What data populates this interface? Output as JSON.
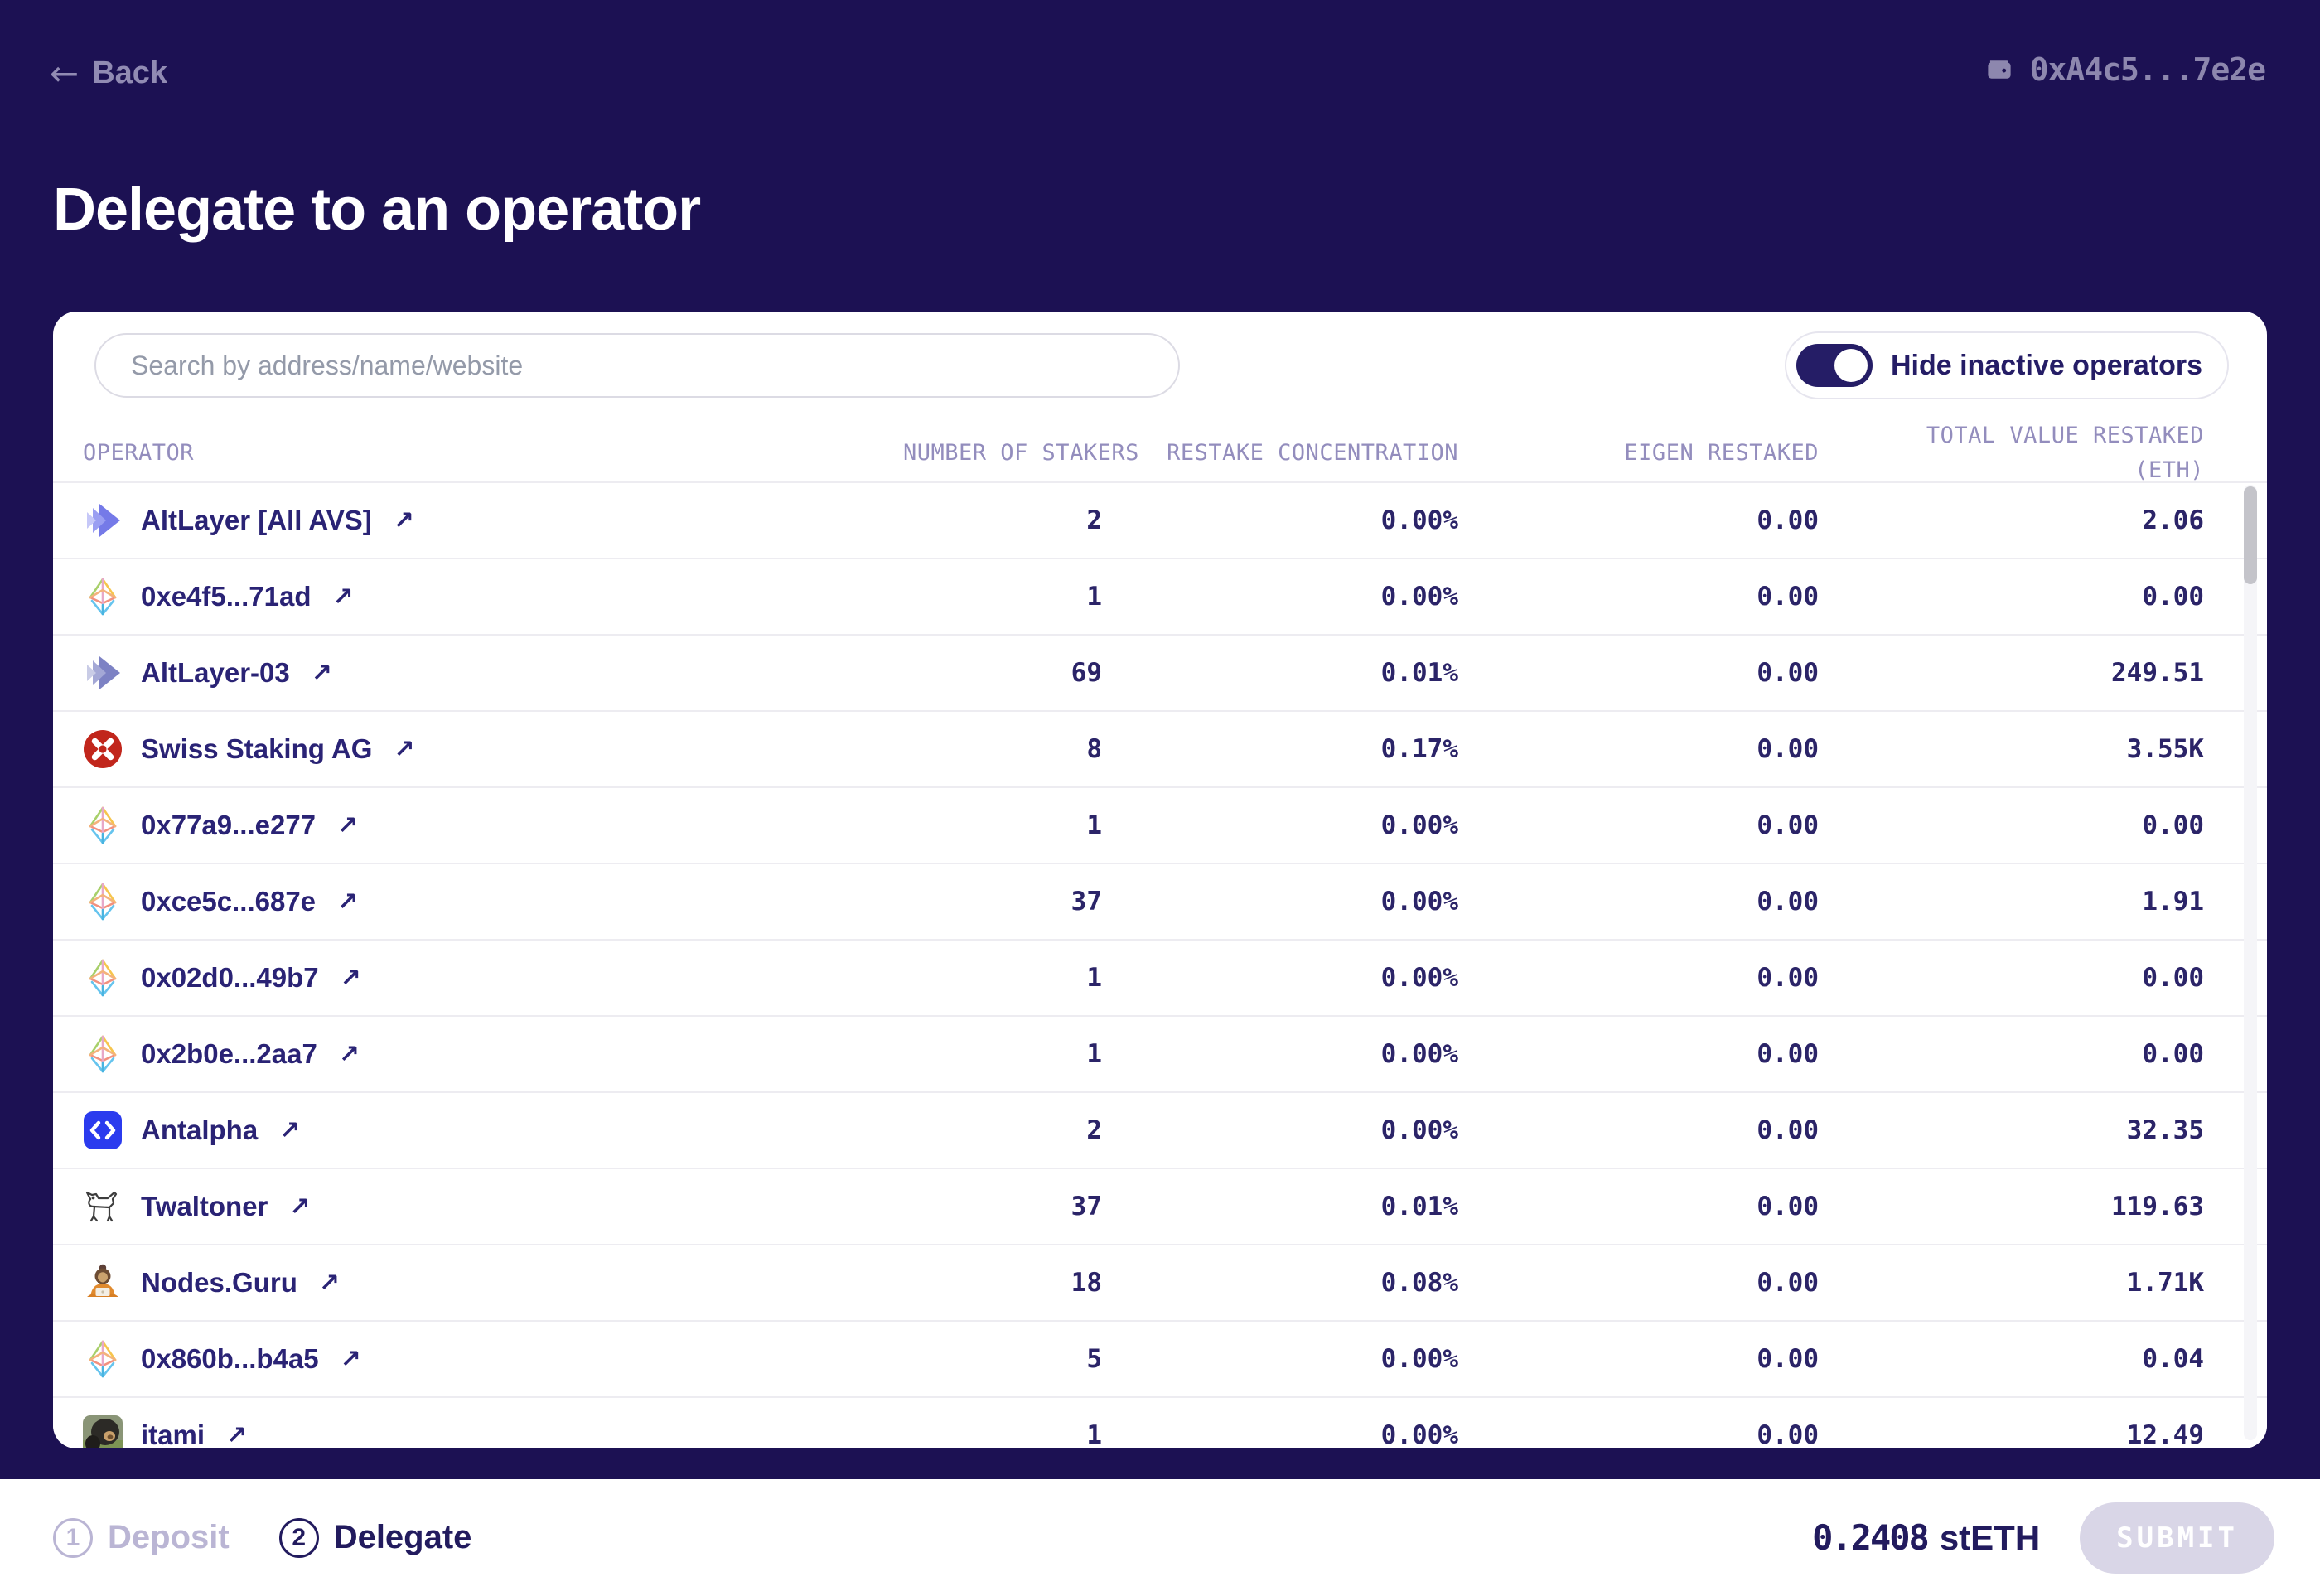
{
  "top_bar": {
    "back_arrow": "←",
    "back_label": "Back",
    "wallet_icon": "wallet-icon",
    "wallet_address": "0xA4c5...7e2e"
  },
  "page": {
    "title": "Delegate to an operator"
  },
  "panel": {
    "search_placeholder": "Search by address/name/website",
    "toggle_label": "Hide inactive operators",
    "toggle_on": true,
    "link_arrow": "↗",
    "columns": {
      "operator": "OPERATOR",
      "stakers": "NUMBER OF STAKERS",
      "concentration": "RESTAKE CONCENTRATION",
      "eigen": "EIGEN RESTAKED",
      "total_line1": "TOTAL VALUE RESTAKED",
      "total_line2": "(ETH)"
    },
    "rows": [
      {
        "name": "AltLayer [All AVS]",
        "icon": "altlayer-logo",
        "stakers": "2",
        "concentration": "0.00%",
        "eigen": "0.00",
        "total": "2.06"
      },
      {
        "name": "0xe4f5...71ad",
        "icon": "eth-diamond-logo",
        "stakers": "1",
        "concentration": "0.00%",
        "eigen": "0.00",
        "total": "0.00"
      },
      {
        "name": "AltLayer-03",
        "icon": "altlayer-muted-logo",
        "stakers": "69",
        "concentration": "0.01%",
        "eigen": "0.00",
        "total": "249.51"
      },
      {
        "name": "Swiss Staking AG",
        "icon": "swiss-staking-logo",
        "stakers": "8",
        "concentration": "0.17%",
        "eigen": "0.00",
        "total": "3.55K"
      },
      {
        "name": "0x77a9...e277",
        "icon": "eth-diamond-logo",
        "stakers": "1",
        "concentration": "0.00%",
        "eigen": "0.00",
        "total": "0.00"
      },
      {
        "name": "0xce5c...687e",
        "icon": "eth-diamond-logo",
        "stakers": "37",
        "concentration": "0.00%",
        "eigen": "0.00",
        "total": "1.91"
      },
      {
        "name": "0x02d0...49b7",
        "icon": "eth-diamond-logo",
        "stakers": "1",
        "concentration": "0.00%",
        "eigen": "0.00",
        "total": "0.00"
      },
      {
        "name": "0x2b0e...2aa7",
        "icon": "eth-diamond-logo",
        "stakers": "1",
        "concentration": "0.00%",
        "eigen": "0.00",
        "total": "0.00"
      },
      {
        "name": "Antalpha",
        "icon": "antalpha-logo",
        "stakers": "2",
        "concentration": "0.00%",
        "eigen": "0.00",
        "total": "32.35"
      },
      {
        "name": "Twaltoner",
        "icon": "twaltoner-dog-logo",
        "stakers": "37",
        "concentration": "0.01%",
        "eigen": "0.00",
        "total": "119.63"
      },
      {
        "name": "Nodes.Guru",
        "icon": "nodes-guru-logo",
        "stakers": "18",
        "concentration": "0.08%",
        "eigen": "0.00",
        "total": "1.71K"
      },
      {
        "name": "0x860b...b4a5",
        "icon": "eth-diamond-logo",
        "stakers": "5",
        "concentration": "0.00%",
        "eigen": "0.00",
        "total": "0.04"
      },
      {
        "name": "itami",
        "icon": "itami-avatar",
        "stakers": "1",
        "concentration": "0.00%",
        "eigen": "0.00",
        "total": "12.49"
      }
    ]
  },
  "footer": {
    "steps": [
      {
        "number": "1",
        "label": "Deposit",
        "active": false
      },
      {
        "number": "2",
        "label": "Delegate",
        "active": true
      }
    ],
    "balance_value": "0.2408",
    "balance_unit": "stETH",
    "submit_label": "SUBMIT"
  },
  "colors": {
    "background": "#1c1153",
    "card": "#ffffff",
    "accent_navy": "#251d66",
    "muted_on_navy": "#8d87ae",
    "divider": "#edecf1",
    "disabled_button": "#d9d6e7",
    "swiss_red": "#c1261c",
    "antalpha_blue": "#2b3bee",
    "altlayer_purple": "#757ae8"
  }
}
